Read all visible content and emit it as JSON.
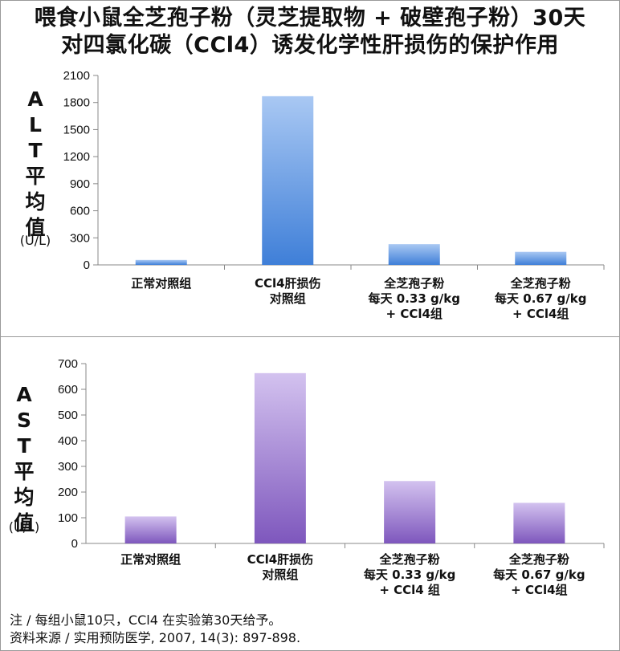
{
  "title": {
    "line1": "喂食小鼠全芝孢子粉（灵芝提取物 + 破壁孢子粉）30天",
    "line2": "对四氯化碳（CCl4）诱发化学性肝损伤的保护作用"
  },
  "notes": {
    "line1": "注 / 每组小鼠10只，CCl4 在实验第30天给予。",
    "line2": "资料来源 / 实用预防医学, 2007, 14(3): 897-898."
  },
  "colors": {
    "alt_bar_top": "#a9c8f3",
    "alt_bar_bottom": "#3f7fd8",
    "ast_bar_top": "#d3c2ef",
    "ast_bar_bottom": "#7e57bd",
    "axis": "#888888"
  },
  "chart_data": [
    {
      "type": "bar",
      "ylabel": [
        "A",
        "L",
        "T",
        "平",
        "均",
        "值"
      ],
      "yunit": "(U/L)",
      "ylim": [
        0,
        2100
      ],
      "yticks": [
        0,
        300,
        600,
        900,
        1200,
        1500,
        1800,
        2100
      ],
      "categories": [
        [
          "正常对照组"
        ],
        [
          "CCl4肝损伤",
          "对照组"
        ],
        [
          "全芝孢子粉",
          "每天 0.33 g/kg",
          "+ CCl4组"
        ],
        [
          "全芝孢子粉",
          "每天 0.67 g/kg",
          "+ CCl4组"
        ]
      ],
      "values": [
        55,
        1870,
        230,
        145
      ],
      "grid": false,
      "legend": "none"
    },
    {
      "type": "bar",
      "ylabel": [
        "A",
        "S",
        "T",
        "平",
        "均",
        "值"
      ],
      "yunit": "(U/L)",
      "ylim": [
        0,
        700
      ],
      "yticks": [
        0,
        100,
        200,
        300,
        400,
        500,
        600,
        700
      ],
      "categories": [
        [
          "正常对照组"
        ],
        [
          "CCl4肝损伤",
          "对照组"
        ],
        [
          "全芝孢子粉",
          "每天 0.33 g/kg",
          "+ CCl4 组"
        ],
        [
          "全芝孢子粉",
          "每天 0.67 g/kg",
          "+ CCl4组"
        ]
      ],
      "values": [
        105,
        663,
        243,
        158
      ],
      "grid": false,
      "legend": "none"
    }
  ]
}
